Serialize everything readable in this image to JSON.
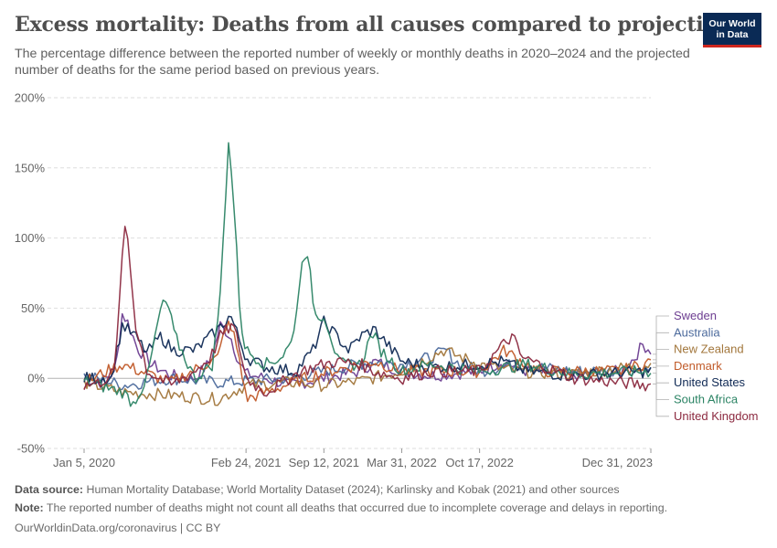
{
  "header": {
    "title": "Excess mortality: Deaths from all causes compared to projection",
    "subtitle": "The percentage difference between the reported number of weekly or monthly deaths in 2020–2024 and the projected number of deaths for the same period based on previous years.",
    "logo_text": "Our World in Data"
  },
  "footer": {
    "source_label": "Data source:",
    "source_text": "Human Mortality Database; World Mortality Dataset (2024); Karlinsky and Kobak (2021) and other sources",
    "note_label": "Note:",
    "note_text": "The reported number of deaths might not count all deaths that occurred due to incomplete coverage and delays in reporting.",
    "credit": "OurWorldinData.org/coronavirus | CC BY"
  },
  "chart_data": {
    "type": "line",
    "x_start": "2020-01-05",
    "x_end": "2023-12-31",
    "ylim": [
      -50,
      200
    ],
    "yticks": [
      -50,
      0,
      50,
      100,
      150,
      200
    ],
    "ytick_labels": [
      "-50%",
      "0%",
      "50%",
      "100%",
      "150%",
      "200%"
    ],
    "xticks": [
      {
        "date": "2020-01-05",
        "label": "Jan 5, 2020"
      },
      {
        "date": "2021-02-24",
        "label": "Feb 24, 2021"
      },
      {
        "date": "2021-09-12",
        "label": "Sep 12, 2021"
      },
      {
        "date": "2022-03-31",
        "label": "Mar 31, 2022"
      },
      {
        "date": "2022-10-17",
        "label": "Oct 17, 2022"
      },
      {
        "date": "2023-12-31",
        "label": "Dec 31, 2023"
      }
    ],
    "grid": true,
    "legend_position": "right",
    "series": [
      {
        "name": "Sweden",
        "color": "#6d3e91",
        "label_order": 0,
        "points": [
          [
            "2020-01-05",
            0
          ],
          [
            "2020-02-15",
            -3
          ],
          [
            "2020-03-25",
            5
          ],
          [
            "2020-04-12",
            46
          ],
          [
            "2020-04-26",
            40
          ],
          [
            "2020-05-20",
            22
          ],
          [
            "2020-06-25",
            10
          ],
          [
            "2020-08-15",
            2
          ],
          [
            "2020-10-15",
            0
          ],
          [
            "2020-11-25",
            12
          ],
          [
            "2020-12-20",
            38
          ],
          [
            "2021-01-15",
            30
          ],
          [
            "2021-02-05",
            12
          ],
          [
            "2021-02-24",
            3
          ],
          [
            "2021-04-15",
            0
          ],
          [
            "2021-06-15",
            -5
          ],
          [
            "2021-09-12",
            0
          ],
          [
            "2021-12-15",
            5
          ],
          [
            "2022-01-20",
            12
          ],
          [
            "2022-03-31",
            5
          ],
          [
            "2022-06-15",
            2
          ],
          [
            "2022-10-17",
            5
          ],
          [
            "2022-12-15",
            12
          ],
          [
            "2023-02-15",
            5
          ],
          [
            "2023-06-15",
            2
          ],
          [
            "2023-10-15",
            5
          ],
          [
            "2023-11-20",
            15
          ],
          [
            "2023-12-10",
            24
          ],
          [
            "2023-12-31",
            20
          ]
        ]
      },
      {
        "name": "Australia",
        "color": "#4c6a9c",
        "label_order": 1,
        "points": [
          [
            "2020-01-05",
            2
          ],
          [
            "2020-04-15",
            -5
          ],
          [
            "2020-08-15",
            0
          ],
          [
            "2020-12-15",
            -3
          ],
          [
            "2021-02-24",
            -2
          ],
          [
            "2021-06-15",
            0
          ],
          [
            "2021-09-12",
            5
          ],
          [
            "2022-01-15",
            12
          ],
          [
            "2022-03-31",
            10
          ],
          [
            "2022-06-15",
            15
          ],
          [
            "2022-07-25",
            20
          ],
          [
            "2022-08-15",
            12
          ],
          [
            "2022-10-17",
            5
          ],
          [
            "2023-01-15",
            10
          ],
          [
            "2023-06-15",
            5
          ],
          [
            "2023-12-31",
            6
          ]
        ]
      },
      {
        "name": "New Zealand",
        "color": "#a2763b",
        "label_order": 2,
        "points": [
          [
            "2020-01-05",
            -3
          ],
          [
            "2020-04-15",
            -10
          ],
          [
            "2020-08-15",
            -12
          ],
          [
            "2020-12-15",
            -15
          ],
          [
            "2021-02-24",
            -5
          ],
          [
            "2021-06-15",
            -3
          ],
          [
            "2021-09-12",
            -5
          ],
          [
            "2021-12-15",
            -2
          ],
          [
            "2022-03-31",
            5
          ],
          [
            "2022-07-15",
            20
          ],
          [
            "2022-10-17",
            10
          ],
          [
            "2023-01-15",
            5
          ],
          [
            "2023-06-15",
            3
          ],
          [
            "2023-12-31",
            10
          ]
        ]
      },
      {
        "name": "Denmark",
        "color": "#c15b2a",
        "label_order": 3,
        "points": [
          [
            "2020-01-05",
            -3
          ],
          [
            "2020-04-10",
            10
          ],
          [
            "2020-08-15",
            -3
          ],
          [
            "2020-12-15",
            15
          ],
          [
            "2021-01-05",
            40
          ],
          [
            "2021-01-25",
            30
          ],
          [
            "2021-02-10",
            10
          ],
          [
            "2021-02-24",
            -15
          ],
          [
            "2021-04-15",
            -10
          ],
          [
            "2021-08-15",
            2
          ],
          [
            "2021-12-15",
            10
          ],
          [
            "2022-01-20",
            12
          ],
          [
            "2022-03-31",
            5
          ],
          [
            "2022-10-17",
            5
          ],
          [
            "2022-12-20",
            20
          ],
          [
            "2023-03-15",
            5
          ],
          [
            "2023-10-15",
            5
          ],
          [
            "2023-12-31",
            12
          ]
        ]
      },
      {
        "name": "United States",
        "color": "#102a55",
        "label_order": 4,
        "points": [
          [
            "2020-01-05",
            0
          ],
          [
            "2020-03-15",
            0
          ],
          [
            "2020-04-12",
            38
          ],
          [
            "2020-05-15",
            30
          ],
          [
            "2020-06-15",
            18
          ],
          [
            "2020-07-20",
            30
          ],
          [
            "2020-08-20",
            20
          ],
          [
            "2020-10-15",
            20
          ],
          [
            "2020-12-15",
            35
          ],
          [
            "2021-01-15",
            45
          ],
          [
            "2021-02-10",
            25
          ],
          [
            "2021-02-24",
            15
          ],
          [
            "2021-04-15",
            8
          ],
          [
            "2021-07-01",
            5
          ],
          [
            "2021-08-15",
            20
          ],
          [
            "2021-09-12",
            40
          ],
          [
            "2021-10-15",
            30
          ],
          [
            "2021-11-15",
            20
          ],
          [
            "2021-12-15",
            30
          ],
          [
            "2022-01-20",
            35
          ],
          [
            "2022-03-31",
            12
          ],
          [
            "2022-06-15",
            8
          ],
          [
            "2022-10-17",
            10
          ],
          [
            "2022-12-15",
            12
          ],
          [
            "2023-02-15",
            5
          ],
          [
            "2023-06-15",
            2
          ],
          [
            "2023-12-31",
            5
          ]
        ]
      },
      {
        "name": "South Africa",
        "color": "#2c8465",
        "label_order": 5,
        "points": [
          [
            "2020-01-05",
            -2
          ],
          [
            "2020-04-15",
            -10
          ],
          [
            "2020-05-10",
            -18
          ],
          [
            "2020-06-15",
            0
          ],
          [
            "2020-07-20",
            50
          ],
          [
            "2020-08-05",
            55
          ],
          [
            "2020-08-25",
            30
          ],
          [
            "2020-10-15",
            0
          ],
          [
            "2020-11-30",
            10
          ],
          [
            "2020-12-20",
            60
          ],
          [
            "2021-01-10",
            170
          ],
          [
            "2021-01-25",
            120
          ],
          [
            "2021-02-10",
            40
          ],
          [
            "2021-02-24",
            20
          ],
          [
            "2021-04-15",
            10
          ],
          [
            "2021-05-25",
            15
          ],
          [
            "2021-06-20",
            25
          ],
          [
            "2021-07-10",
            60
          ],
          [
            "2021-07-20",
            93
          ],
          [
            "2021-08-05",
            80
          ],
          [
            "2021-08-20",
            45
          ],
          [
            "2021-09-12",
            45
          ],
          [
            "2021-09-25",
            35
          ],
          [
            "2021-10-20",
            10
          ],
          [
            "2021-12-15",
            10
          ],
          [
            "2022-01-15",
            33
          ],
          [
            "2022-02-05",
            20
          ],
          [
            "2022-03-31",
            5
          ],
          [
            "2022-06-15",
            10
          ],
          [
            "2022-10-17",
            5
          ],
          [
            "2023-02-15",
            10
          ],
          [
            "2023-06-15",
            3
          ],
          [
            "2023-12-31",
            5
          ]
        ]
      },
      {
        "name": "United Kingdom",
        "color": "#8c2a40",
        "label_order": 6,
        "points": [
          [
            "2020-01-05",
            -5
          ],
          [
            "2020-02-15",
            -3
          ],
          [
            "2020-03-25",
            5
          ],
          [
            "2020-04-05",
            60
          ],
          [
            "2020-04-19",
            107
          ],
          [
            "2020-04-26",
            100
          ],
          [
            "2020-05-15",
            40
          ],
          [
            "2020-06-15",
            5
          ],
          [
            "2020-08-15",
            -5
          ],
          [
            "2020-10-15",
            5
          ],
          [
            "2020-11-25",
            15
          ],
          [
            "2020-12-20",
            30
          ],
          [
            "2021-01-20",
            38
          ],
          [
            "2021-02-05",
            25
          ],
          [
            "2021-02-24",
            0
          ],
          [
            "2021-04-15",
            -10
          ],
          [
            "2021-07-15",
            5
          ],
          [
            "2021-09-12",
            10
          ],
          [
            "2021-10-15",
            12
          ],
          [
            "2021-12-15",
            10
          ],
          [
            "2022-01-20",
            5
          ],
          [
            "2022-03-31",
            0
          ],
          [
            "2022-06-15",
            5
          ],
          [
            "2022-10-17",
            5
          ],
          [
            "2022-12-20",
            25
          ],
          [
            "2023-01-10",
            30
          ],
          [
            "2023-02-01",
            15
          ],
          [
            "2023-06-15",
            0
          ],
          [
            "2023-12-31",
            -5
          ]
        ]
      }
    ]
  }
}
